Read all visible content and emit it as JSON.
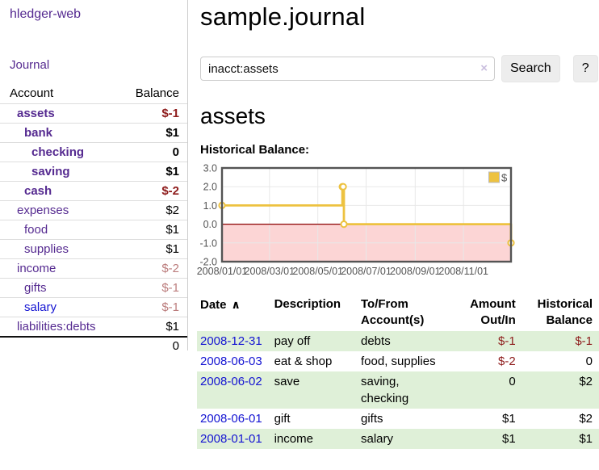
{
  "colors": {
    "link_purple": "#552a90",
    "link_blue": "#1414d2",
    "negative_strong": "#8e1c1c",
    "negative_soft": "#bb7c7c",
    "row_highlight_green": "#dff0d8",
    "chart_series_yellow": "#EDC240",
    "chart_negative_fill": "#fcd5d5",
    "chart_zero_line": "#8b0000",
    "chart_grid": "#e8e8e8",
    "chart_border": "#545454"
  },
  "sidebar": {
    "brand": "hledger-web",
    "journal_link": "Journal",
    "header": {
      "account": "Account",
      "balance": "Balance"
    },
    "accounts": [
      {
        "label": "assets",
        "indent": 0,
        "bold": true,
        "balance": "$-1",
        "balance_style": "neg-strong"
      },
      {
        "label": "bank",
        "indent": 1,
        "bold": true,
        "balance": "$1",
        "balance_style": "normal"
      },
      {
        "label": "checking",
        "indent": 2,
        "bold": true,
        "balance": "0",
        "balance_style": "normal"
      },
      {
        "label": "saving",
        "indent": 2,
        "bold": true,
        "balance": "$1",
        "balance_style": "normal"
      },
      {
        "label": "cash",
        "indent": 1,
        "bold": true,
        "balance": "$-2",
        "balance_style": "neg-strong"
      },
      {
        "label": "expenses",
        "indent": 0,
        "bold": false,
        "balance": "$2",
        "balance_style": "normal"
      },
      {
        "label": "food",
        "indent": 1,
        "bold": false,
        "balance": "$1",
        "balance_style": "normal"
      },
      {
        "label": "supplies",
        "indent": 1,
        "bold": false,
        "balance": "$1",
        "balance_style": "normal"
      },
      {
        "label": "income",
        "indent": 0,
        "bold": false,
        "balance": "$-2",
        "balance_style": "neg-soft"
      },
      {
        "label": "gifts",
        "indent": 1,
        "bold": false,
        "balance": "$-1",
        "balance_style": "neg-soft"
      },
      {
        "label": "salary",
        "indent": 1,
        "bold": false,
        "balance": "$-1",
        "balance_style": "neg-soft",
        "link_style": "blue"
      },
      {
        "label": "liabilities:debts",
        "indent": 0,
        "bold": false,
        "balance": "$1",
        "balance_style": "normal"
      }
    ],
    "total": "0"
  },
  "main": {
    "title": "sample.journal",
    "search": {
      "value": "inacct:assets",
      "clear_icon": "×",
      "search_button": "Search",
      "help_button": "?"
    },
    "account_heading": "assets",
    "chart_heading": "Historical Balance:",
    "register": {
      "headers": [
        {
          "label": "Date",
          "sort_icon": "∧",
          "align": "left"
        },
        {
          "label": "Description",
          "align": "left"
        },
        {
          "label": "To/From Account(s)",
          "align": "left"
        },
        {
          "label": "Amount Out/In",
          "align": "right"
        },
        {
          "label": "Historical Balance",
          "align": "right"
        }
      ],
      "rows": [
        {
          "date": "2008-12-31",
          "description": "pay off",
          "accounts": "debts",
          "amount": "$-1",
          "amount_negative": true,
          "balance": "$-1",
          "balance_negative": true,
          "highlight": true
        },
        {
          "date": "2008-06-03",
          "description": "eat & shop",
          "accounts": "food, supplies",
          "amount": "$-2",
          "amount_negative": true,
          "balance": "0",
          "balance_negative": false,
          "highlight": false
        },
        {
          "date": "2008-06-02",
          "description": "save",
          "accounts": "saving, checking",
          "amount": "0",
          "amount_negative": false,
          "balance": "$2",
          "balance_negative": false,
          "highlight": true
        },
        {
          "date": "2008-06-01",
          "description": "gift",
          "accounts": "gifts",
          "amount": "$1",
          "amount_negative": false,
          "balance": "$2",
          "balance_negative": false,
          "highlight": false
        },
        {
          "date": "2008-01-01",
          "description": "income",
          "accounts": "salary",
          "amount": "$1",
          "amount_negative": false,
          "balance": "$1",
          "balance_negative": false,
          "highlight": true
        }
      ]
    }
  },
  "chart_data": {
    "type": "line",
    "step": true,
    "title": "Historical Balance:",
    "series": [
      {
        "name": "$",
        "color": "#EDC240",
        "points": [
          [
            "2008-01-01",
            1
          ],
          [
            "2008-06-01",
            2
          ],
          [
            "2008-06-02",
            2
          ],
          [
            "2008-06-03",
            0
          ],
          [
            "2008-12-31",
            -1
          ]
        ]
      }
    ],
    "xlim": [
      "2008-01-01",
      "2008-12-31"
    ],
    "ylim": [
      -2,
      3
    ],
    "ytick_labels": [
      "3.0",
      "2.0",
      "1.0",
      "0.0",
      "-1.0",
      "-2.0"
    ],
    "xtick_labels": [
      "2008/01/01",
      "2008/03/01",
      "2008/05/01",
      "2008/07/01",
      "2008/09/01",
      "2008/11/01"
    ],
    "legend": {
      "position": "top-right",
      "label": "$"
    },
    "grid": true,
    "negative_region_shaded": true,
    "zero_line": true
  }
}
